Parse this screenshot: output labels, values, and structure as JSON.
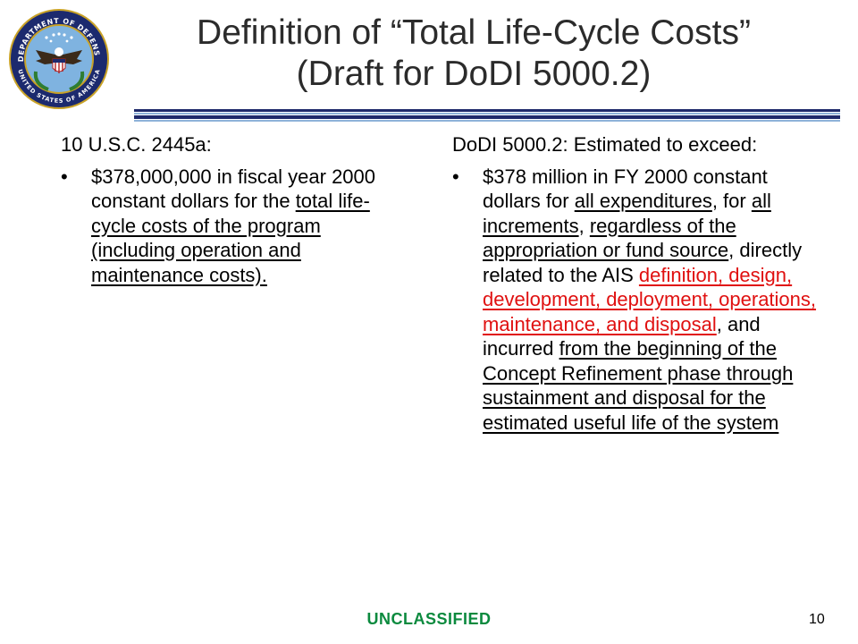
{
  "seal": {
    "top_text": "DEPARTMENT OF DEFENSE",
    "bottom_text": "UNITED STATES OF AMERICA"
  },
  "title": {
    "line1": "Definition of “Total Life-Cycle Costs”",
    "line2": "(Draft for DoDI 5000.2)"
  },
  "left_column": {
    "heading": "10 U.S.C. 2445a:",
    "bullet": "•",
    "bullet_parts": {
      "p1": "$378,000,000 in fiscal year 2000 constant dollars for the ",
      "p2": "total life-cycle costs of the program (including operation and maintenance costs)."
    }
  },
  "right_column": {
    "heading": "DoDI 5000.2:  Estimated to exceed:",
    "bullet": "•",
    "bullet_parts": {
      "p1": "$378 million in FY 2000 constant dollars for ",
      "p2": "all expenditures",
      "p3": ", for ",
      "p4": "all increments",
      "p5": ", ",
      "p6": "regardless of the appropriation or fund source",
      "p7": ", directly related to the AIS ",
      "p8": "definition, design, development, deployment, operations, maintenance, and disposal",
      "p9": ", and incurred ",
      "p10": "from the beginning of the Concept Refinement phase through sustainment and disposal for the estimated useful life of the system"
    }
  },
  "footer": {
    "classification": "UNCLASSIFIED",
    "page_number": "10"
  },
  "colors": {
    "title": "#2b2b2b",
    "rule_dark": "#1f2a6b",
    "rule_light": "#8fb3d9",
    "red_text": "#e01010",
    "classification": "#0b8a3e"
  }
}
